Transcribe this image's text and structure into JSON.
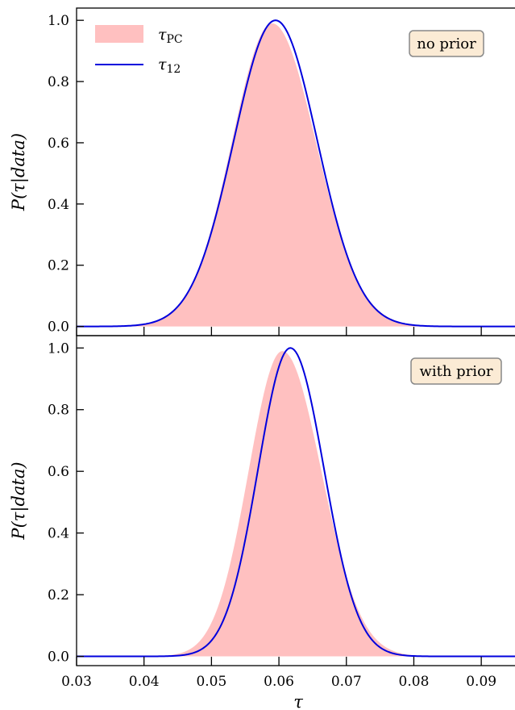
{
  "chart_data": {
    "type": "area",
    "xlabel": "τ",
    "xlim": [
      0.03,
      0.095
    ],
    "x_ticks": [
      0.03,
      0.04,
      0.05,
      0.06,
      0.07,
      0.08,
      0.09
    ],
    "x_tick_labels": [
      "0.03",
      "0.04",
      "0.05",
      "0.06",
      "0.07",
      "0.08",
      "0.09"
    ],
    "legend": {
      "placement": "top-left",
      "entries": [
        {
          "label": "τ",
          "sub": "PC",
          "style": "fill",
          "color": "#ffc0c0"
        },
        {
          "label": "τ",
          "sub": "12",
          "style": "line",
          "color": "#0000dd"
        }
      ]
    },
    "panels": [
      {
        "ylabel": "P(τ|data)",
        "ylim": [
          -0.03,
          1.04
        ],
        "y_ticks": [
          0.0,
          0.2,
          0.4,
          0.6,
          0.8,
          1.0
        ],
        "y_tick_labels": [
          "0.0",
          "0.2",
          "0.4",
          "0.6",
          "0.8",
          "1.0"
        ],
        "annotation": "no prior",
        "series": [
          {
            "type": "area",
            "color": "#ffc0c0",
            "peak_x": 0.059,
            "sigma_left": 0.006,
            "sigma_right": 0.0065,
            "peak_y": 0.99
          },
          {
            "type": "line",
            "color": "#0000dd",
            "peak_x": 0.0595,
            "sigma_left": 0.0062,
            "sigma_right": 0.0062,
            "peak_y": 1.0
          }
        ]
      },
      {
        "ylabel": "P(τ|data)",
        "ylim": [
          -0.03,
          1.04
        ],
        "y_ticks": [
          0.0,
          0.2,
          0.4,
          0.6,
          0.8,
          1.0
        ],
        "y_tick_labels": [
          "0.0",
          "0.2",
          "0.4",
          "0.6",
          "0.8",
          "1.0"
        ],
        "annotation": "with prior",
        "series": [
          {
            "type": "area",
            "color": "#ffc0c0",
            "peak_x": 0.0605,
            "sigma_left": 0.005,
            "sigma_right": 0.0058,
            "peak_y": 0.99
          },
          {
            "type": "line",
            "color": "#0000dd",
            "peak_x": 0.0617,
            "sigma_left": 0.0048,
            "sigma_right": 0.005,
            "peak_y": 1.0
          }
        ]
      }
    ]
  }
}
